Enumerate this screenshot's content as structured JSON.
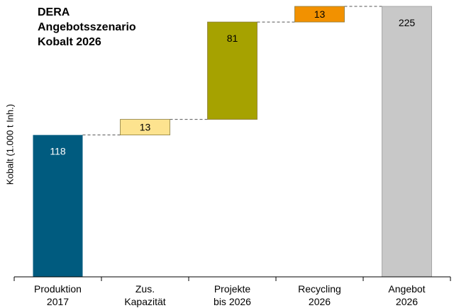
{
  "chart_data": {
    "type": "waterfall",
    "title": [
      "DERA",
      "Angebotsszenario",
      "Kobalt 2026"
    ],
    "ylabel": "Kobalt (1.000 t Inh.)",
    "ylim": [
      0,
      225
    ],
    "categories": [
      "Produktion 2017",
      "Zus. Kapazität",
      "Projekte bis 2026",
      "Recycling 2026",
      "Angebot 2026"
    ],
    "category_lines": [
      [
        "Produktion",
        "2017"
      ],
      [
        "Zus.",
        "Kapazität"
      ],
      [
        "Projekte",
        "bis 2026"
      ],
      [
        "Recycling",
        "2026"
      ],
      [
        "Angebot",
        "2026"
      ]
    ],
    "values": [
      118,
      13,
      81,
      13,
      225
    ],
    "bar_kind": [
      "total",
      "increment",
      "increment",
      "increment",
      "total"
    ],
    "data_labels": [
      "118",
      "13",
      "81",
      "13",
      "225"
    ],
    "colors": [
      "#005b7f",
      "#fde38f",
      "#a6a200",
      "#f29100",
      "#c8c8c8"
    ],
    "label_colors": [
      "#ffffff",
      "#000000",
      "#000000",
      "#000000",
      "#000000"
    ],
    "connector_lines": true,
    "grid": false,
    "legend": "none"
  }
}
